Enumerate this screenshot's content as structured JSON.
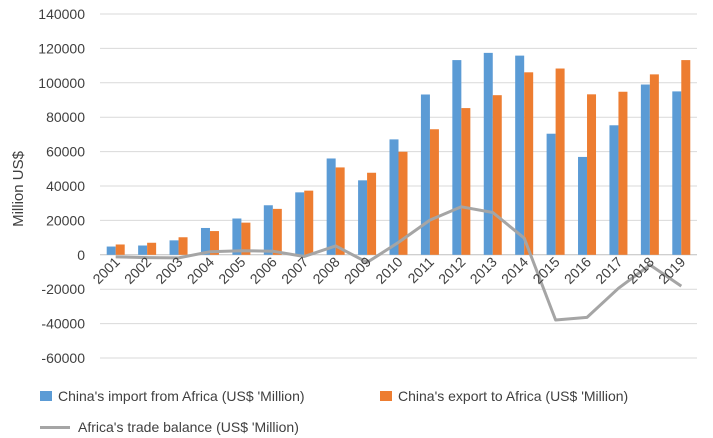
{
  "chart_data": {
    "type": "bar",
    "title": "",
    "xlabel": "",
    "ylabel": "Million US$",
    "ylim": [
      -60000,
      140000
    ],
    "yticks": [
      -60000,
      -40000,
      -20000,
      0,
      20000,
      40000,
      60000,
      80000,
      100000,
      120000,
      140000
    ],
    "grid": true,
    "legend_position": "bottom",
    "categories": [
      "2001",
      "2002",
      "2003",
      "2004",
      "2005",
      "2006",
      "2007",
      "2008",
      "2009",
      "2010",
      "2011",
      "2012",
      "2013",
      "2014",
      "2015",
      "2016",
      "2017",
      "2018",
      "2019"
    ],
    "series": [
      {
        "name": "China's import from Africa (US$ 'Million)",
        "type": "bar",
        "color": "#5b9bd5",
        "values": [
          4800,
          5400,
          8400,
          15600,
          21100,
          28800,
          36300,
          56000,
          43300,
          67100,
          93200,
          113200,
          117400,
          115800,
          70400,
          56900,
          75300,
          99000,
          95000
        ]
      },
      {
        "name": "China's export to Africa (US$ 'Million)",
        "type": "bar",
        "color": "#ed7d31",
        "values": [
          6000,
          7000,
          10200,
          13800,
          18700,
          26700,
          37300,
          50800,
          47700,
          59900,
          73000,
          85300,
          92800,
          106100,
          108300,
          93300,
          94800,
          104900,
          113200
        ]
      },
      {
        "name": "Africa's trade balance  (US$ 'Million)",
        "type": "line",
        "color": "#a5a5a5",
        "values": [
          -1200,
          -1600,
          -1800,
          1800,
          2400,
          2100,
          -1000,
          5200,
          -4400,
          7200,
          20200,
          27900,
          24600,
          9700,
          -37900,
          -36400,
          -19500,
          -5900,
          -18200
        ]
      }
    ]
  }
}
